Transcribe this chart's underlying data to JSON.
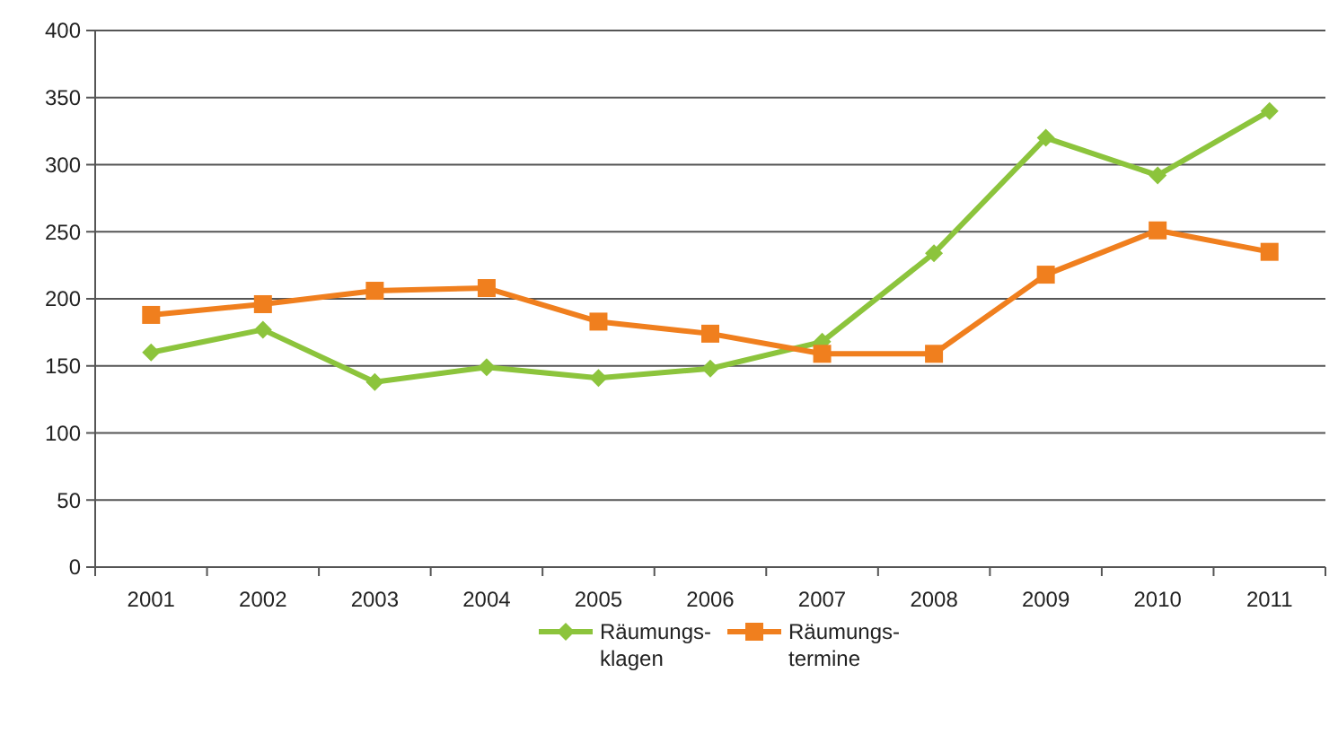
{
  "chart_data": {
    "type": "line",
    "categories": [
      "2001",
      "2002",
      "2003",
      "2004",
      "2005",
      "2006",
      "2007",
      "2008",
      "2009",
      "2010",
      "2011"
    ],
    "series": [
      {
        "name": "Räumungs- klagen",
        "color": "#8cc43c",
        "marker": "diamond",
        "values": [
          160,
          177,
          138,
          149,
          141,
          148,
          168,
          234,
          320,
          292,
          340
        ]
      },
      {
        "name": "Räumungs- termine",
        "color": "#f07f1e",
        "marker": "square",
        "values": [
          188,
          196,
          206,
          208,
          183,
          174,
          159,
          159,
          218,
          251,
          235
        ]
      }
    ],
    "ylim": [
      0,
      400
    ],
    "yticks": [
      0,
      50,
      100,
      150,
      200,
      250,
      300,
      350,
      400
    ],
    "grid": "y",
    "legend": "bottom"
  }
}
